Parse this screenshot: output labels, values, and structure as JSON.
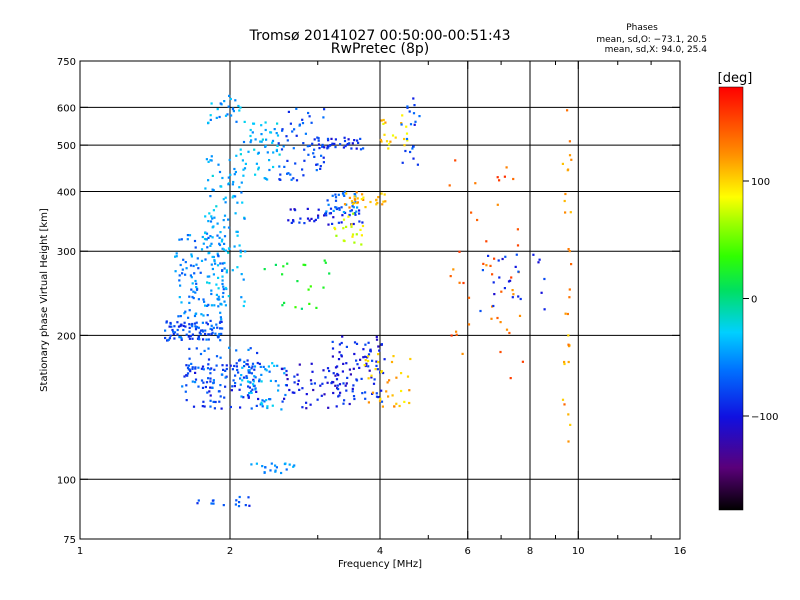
{
  "chart_data": {
    "type": "scatter",
    "title": "Tromsø 20141027 00:50:00-00:51:43",
    "subtitle": "RwPretec (8p)",
    "xlabel": "Frequency [MHz]",
    "ylabel": "Stationary phase Virtual Height [km]",
    "x_scale": "log",
    "y_scale": "log",
    "xlim": [
      1,
      16
    ],
    "ylim": [
      75,
      750
    ],
    "x_ticks": [
      1,
      2,
      4,
      6,
      8,
      10,
      16
    ],
    "x_tick_labels": [
      "1",
      "2",
      "4",
      "6",
      "8",
      "10",
      "16"
    ],
    "x_minor_ticks": [
      3,
      5,
      7,
      9,
      12,
      14
    ],
    "y_ticks": [
      75,
      100,
      200,
      300,
      400,
      500,
      600,
      750
    ],
    "y_tick_labels": [
      "75",
      "100",
      "200",
      "300",
      "400",
      "500",
      "600",
      "750"
    ],
    "grid_x": [
      2,
      4,
      6,
      8,
      10
    ],
    "grid_y": [
      100,
      200,
      300,
      400,
      500,
      600
    ],
    "annotation": {
      "title": "Phases",
      "line1": "mean, sd,O: −73.1, 20.5",
      "line2": "mean, sd,X:  94.0, 25.4"
    },
    "colorbar": {
      "label": "[deg]",
      "range": [
        -180,
        180
      ],
      "ticks": [
        100,
        0,
        -100
      ],
      "tick_labels": [
        "100",
        "0",
        "−100"
      ],
      "colormap": "rainbow"
    },
    "clusters": [
      {
        "x": [
          1.48,
          1.95
        ],
        "y": [
          195,
          215
        ],
        "phase": -75,
        "n": 95
      },
      {
        "x": [
          1.55,
          1.95
        ],
        "y": [
          215,
          330
        ],
        "phase": -55,
        "n": 110
      },
      {
        "x": [
          1.78,
          2.15
        ],
        "y": [
          230,
          480
        ],
        "phase": -40,
        "n": 120
      },
      {
        "x": [
          1.62,
          2.3
        ],
        "y": [
          140,
          175
        ],
        "phase": -85,
        "n": 90
      },
      {
        "x": [
          1.6,
          2.3
        ],
        "y": [
          155,
          190
        ],
        "phase": -70,
        "n": 60
      },
      {
        "x": [
          2.1,
          2.6
        ],
        "y": [
          140,
          175
        ],
        "phase": -45,
        "n": 50
      },
      {
        "x": [
          1.8,
          2.1
        ],
        "y": [
          550,
          640
        ],
        "phase": -45,
        "n": 25
      },
      {
        "x": [
          2.1,
          2.6
        ],
        "y": [
          420,
          560
        ],
        "phase": -40,
        "n": 55
      },
      {
        "x": [
          2.5,
          3.1
        ],
        "y": [
          420,
          600
        ],
        "phase": -75,
        "n": 60
      },
      {
        "x": [
          3.0,
          3.7
        ],
        "y": [
          490,
          520
        ],
        "phase": -90,
        "n": 35
      },
      {
        "x": [
          2.6,
          3.7
        ],
        "y": [
          340,
          370
        ],
        "phase": -95,
        "n": 45
      },
      {
        "x": [
          3.1,
          3.6
        ],
        "y": [
          360,
          400
        ],
        "phase": -60,
        "n": 30
      },
      {
        "x": [
          3.4,
          4.1
        ],
        "y": [
          370,
          400
        ],
        "phase": 110,
        "n": 30
      },
      {
        "x": [
          3.2,
          3.7
        ],
        "y": [
          310,
          360
        ],
        "phase": 80,
        "n": 20
      },
      {
        "x": [
          2.5,
          3.6
        ],
        "y": [
          140,
          175
        ],
        "phase": -100,
        "n": 60
      },
      {
        "x": [
          3.2,
          4.1
        ],
        "y": [
          145,
          200
        ],
        "phase": -95,
        "n": 80
      },
      {
        "x": [
          3.7,
          4.6
        ],
        "y": [
          140,
          185
        ],
        "phase": 110,
        "n": 35
      },
      {
        "x": [
          2.2,
          2.7
        ],
        "y": [
          103,
          108
        ],
        "phase": -50,
        "n": 20
      },
      {
        "x": [
          1.7,
          2.2
        ],
        "y": [
          87,
          92
        ],
        "phase": -80,
        "n": 15
      },
      {
        "x": [
          2.3,
          3.3
        ],
        "y": [
          225,
          290
        ],
        "phase": 20,
        "n": 20
      },
      {
        "x": [
          4.0,
          4.6
        ],
        "y": [
          490,
          580
        ],
        "phase": 100,
        "n": 20
      },
      {
        "x": [
          4.3,
          4.8
        ],
        "y": [
          450,
          640
        ],
        "phase": -80,
        "n": 20
      },
      {
        "x": [
          5.5,
          7.8
        ],
        "y": [
          160,
          480
        ],
        "phase": 140,
        "n": 45
      },
      {
        "x": [
          6.3,
          8.6
        ],
        "y": [
          225,
          300
        ],
        "phase": -90,
        "n": 25
      },
      {
        "x": [
          9.3,
          9.7
        ],
        "y": [
          120,
          600
        ],
        "phase": 120,
        "n": 30
      }
    ]
  }
}
